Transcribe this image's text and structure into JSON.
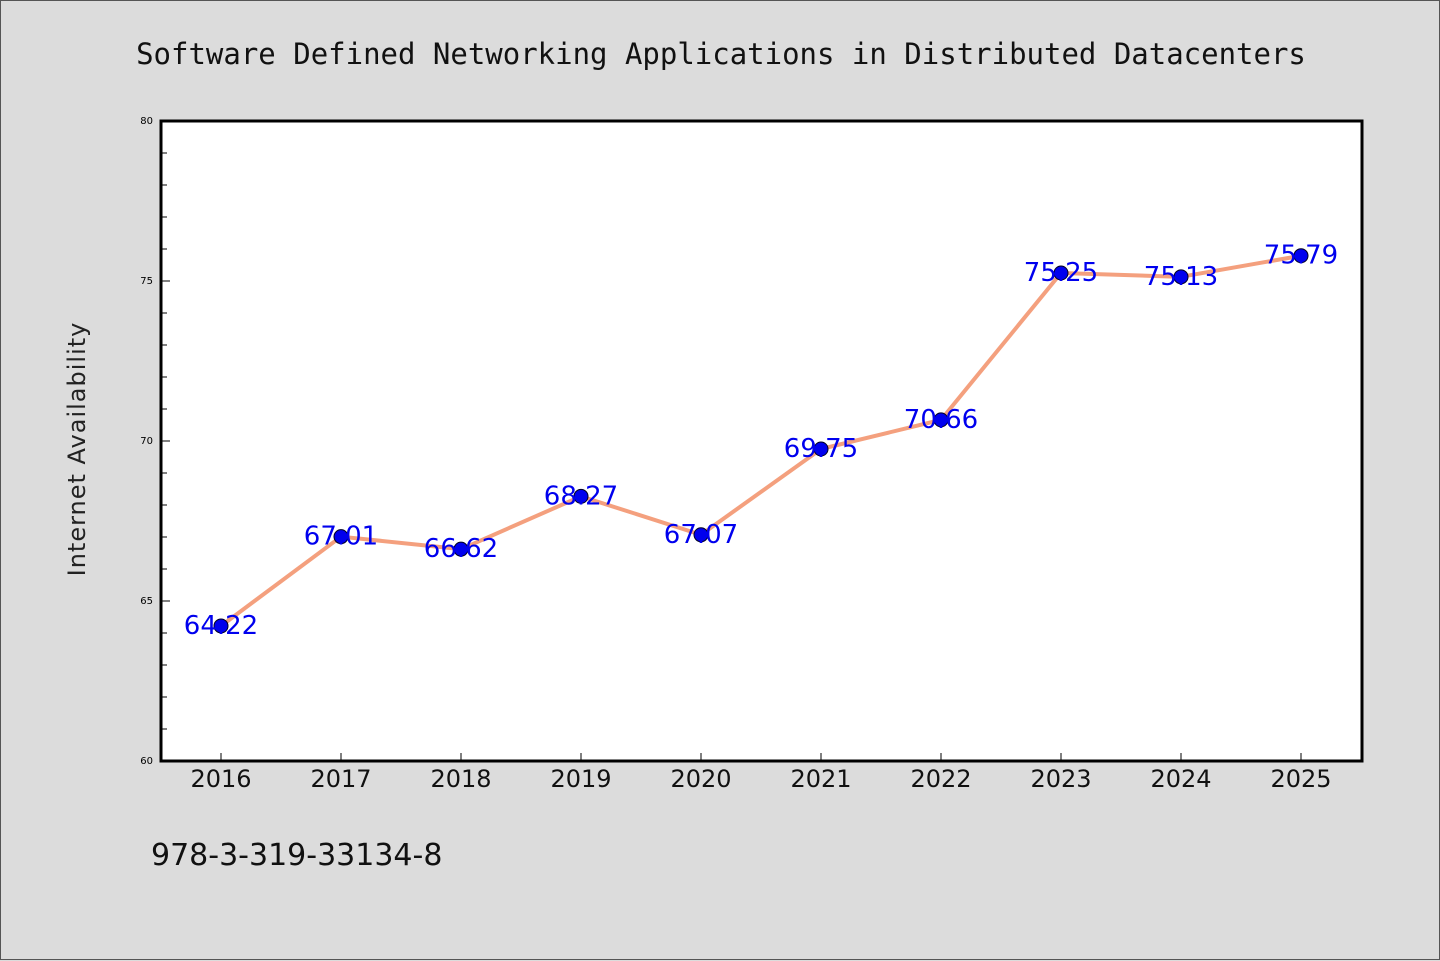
{
  "chart_data": {
    "type": "line",
    "title": "Software Defined Networking Applications in Distributed Datacenters",
    "xlabel": "",
    "ylabel": "Internet Availability",
    "categories": [
      "2016",
      "2017",
      "2018",
      "2019",
      "2020",
      "2021",
      "2022",
      "2023",
      "2024",
      "2025"
    ],
    "series": [
      {
        "values": [
          64.22,
          67.01,
          66.62,
          68.27,
          67.07,
          69.75,
          70.66,
          75.25,
          75.13,
          75.79
        ],
        "labels": [
          "64.22",
          "67.01",
          "66.62",
          "68.27",
          "67.07",
          "69.75",
          "70.66",
          "75.25",
          "75.13",
          "75.79"
        ]
      }
    ],
    "ylim": [
      60,
      80
    ],
    "yticks": [
      "60",
      "65",
      "70",
      "75",
      "80"
    ],
    "grid": false,
    "colors": {
      "line": "#f4a07e",
      "marker": "#0000ee",
      "label": "#0000ee",
      "background": "#dcdcdc",
      "plot_area": "#ffffff"
    }
  },
  "footer": {
    "text": "978-3-319-33134-8"
  }
}
